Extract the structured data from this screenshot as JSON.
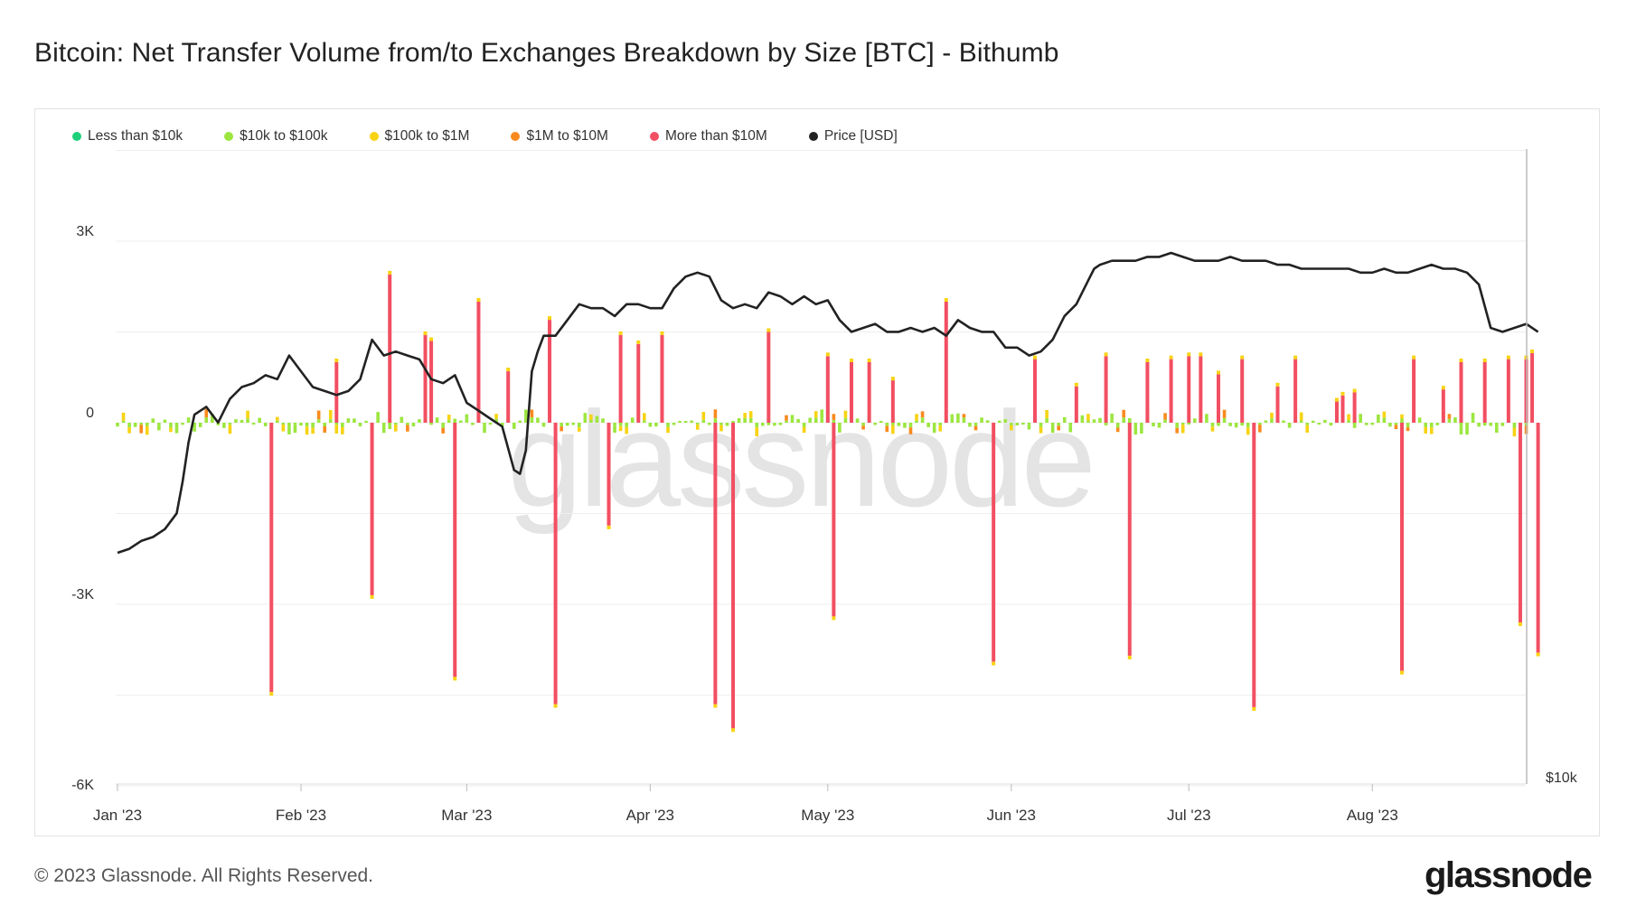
{
  "title": "Bitcoin: Net Transfer Volume from/to Exchanges Breakdown by Size [BTC] - Bithumb",
  "footer": {
    "copyright": "© 2023 Glassnode. All Rights Reserved.",
    "logo": "glassnode"
  },
  "watermark": "glassnode",
  "legend": [
    {
      "label": "Less than $10k",
      "color": "#1fd07a"
    },
    {
      "label": "$10k to $100k",
      "color": "#9ce63f"
    },
    {
      "label": "$100k to $1M",
      "color": "#f7d313"
    },
    {
      "label": "$1M to $10M",
      "color": "#fa8a1e"
    },
    {
      "label": "More than $10M",
      "color": "#f24f62"
    },
    {
      "label": "Price [USD]",
      "color": "#222222"
    }
  ],
  "chart_data": {
    "type": "bar",
    "title": "Bitcoin: Net Transfer Volume from/to Exchanges Breakdown by Size [BTC] - Bithumb",
    "stacked": true,
    "ylim": [
      -6000,
      4000
    ],
    "y_ticks": [
      3000,
      0,
      -3000,
      -6000
    ],
    "y_tick_labels": [
      "3K",
      "0",
      "-3K",
      "-6K"
    ],
    "secondary_y_tick_labels": [
      "$10k"
    ],
    "x_range": [
      "2023-01-01",
      "2023-08-28"
    ],
    "x_ticks": [
      "2023-01-01",
      "2023-02-01",
      "2023-03-01",
      "2023-04-01",
      "2023-05-01",
      "2023-06-01",
      "2023-07-01",
      "2023-08-01"
    ],
    "x_tick_labels": [
      "Jan '23",
      "Feb '23",
      "Mar '23",
      "Apr '23",
      "May '23",
      "Jun '23",
      "Jul '23",
      "Aug '23"
    ],
    "grid": true,
    "legend_position": "top-left",
    "big_series": "More than $10M",
    "big_moves": [
      {
        "date": "2023-01-27",
        "value": -4450
      },
      {
        "date": "2023-02-07",
        "value": 1000
      },
      {
        "date": "2023-02-13",
        "value": -2850
      },
      {
        "date": "2023-02-16",
        "value": 2450
      },
      {
        "date": "2023-02-22",
        "value": 1450
      },
      {
        "date": "2023-02-23",
        "value": 1350
      },
      {
        "date": "2023-02-27",
        "value": -4200
      },
      {
        "date": "2023-03-03",
        "value": 2000
      },
      {
        "date": "2023-03-08",
        "value": 850
      },
      {
        "date": "2023-03-15",
        "value": 1700
      },
      {
        "date": "2023-03-16",
        "value": -4650
      },
      {
        "date": "2023-03-25",
        "value": -1700
      },
      {
        "date": "2023-03-27",
        "value": 1450
      },
      {
        "date": "2023-03-30",
        "value": 1300
      },
      {
        "date": "2023-04-03",
        "value": 1450
      },
      {
        "date": "2023-04-12",
        "value": -4650
      },
      {
        "date": "2023-04-15",
        "value": -5050
      },
      {
        "date": "2023-04-21",
        "value": 1500
      },
      {
        "date": "2023-05-01",
        "value": 1100
      },
      {
        "date": "2023-05-02",
        "value": -3200
      },
      {
        "date": "2023-05-05",
        "value": 1000
      },
      {
        "date": "2023-05-08",
        "value": 1000
      },
      {
        "date": "2023-05-12",
        "value": 700
      },
      {
        "date": "2023-05-21",
        "value": 2000
      },
      {
        "date": "2023-05-29",
        "value": -3950
      },
      {
        "date": "2023-06-05",
        "value": 1050
      },
      {
        "date": "2023-06-12",
        "value": 600
      },
      {
        "date": "2023-06-17",
        "value": 1100
      },
      {
        "date": "2023-06-21",
        "value": -3850
      },
      {
        "date": "2023-06-24",
        "value": 1000
      },
      {
        "date": "2023-06-28",
        "value": 1050
      },
      {
        "date": "2023-07-01",
        "value": 1100
      },
      {
        "date": "2023-07-03",
        "value": 1100
      },
      {
        "date": "2023-07-06",
        "value": 800
      },
      {
        "date": "2023-07-10",
        "value": 1050
      },
      {
        "date": "2023-07-12",
        "value": -4700
      },
      {
        "date": "2023-07-16",
        "value": 600
      },
      {
        "date": "2023-07-19",
        "value": 1050
      },
      {
        "date": "2023-07-26",
        "value": 350
      },
      {
        "date": "2023-07-27",
        "value": 450
      },
      {
        "date": "2023-07-29",
        "value": 500
      },
      {
        "date": "2023-08-06",
        "value": -4100
      },
      {
        "date": "2023-08-08",
        "value": 1050
      },
      {
        "date": "2023-08-13",
        "value": 550
      },
      {
        "date": "2023-08-16",
        "value": 1000
      },
      {
        "date": "2023-08-20",
        "value": 1000
      },
      {
        "date": "2023-08-24",
        "value": 1050
      },
      {
        "date": "2023-08-26",
        "value": -3300
      },
      {
        "date": "2023-08-27",
        "value": 1050
      },
      {
        "date": "2023-08-28",
        "value": 1150
      },
      {
        "date": "2023-08-29",
        "value": -3800
      }
    ],
    "price_series": {
      "name": "Price [USD]",
      "dates": [
        "2023-01-01",
        "2023-01-03",
        "2023-01-05",
        "2023-01-07",
        "2023-01-09",
        "2023-01-11",
        "2023-01-12",
        "2023-01-13",
        "2023-01-14",
        "2023-01-16",
        "2023-01-18",
        "2023-01-20",
        "2023-01-22",
        "2023-01-24",
        "2023-01-26",
        "2023-01-28",
        "2023-01-30",
        "2023-02-01",
        "2023-02-03",
        "2023-02-05",
        "2023-02-07",
        "2023-02-09",
        "2023-02-11",
        "2023-02-13",
        "2023-02-15",
        "2023-02-17",
        "2023-02-19",
        "2023-02-21",
        "2023-02-23",
        "2023-02-25",
        "2023-02-27",
        "2023-03-01",
        "2023-03-03",
        "2023-03-05",
        "2023-03-07",
        "2023-03-09",
        "2023-03-10",
        "2023-03-11",
        "2023-03-12",
        "2023-03-13",
        "2023-03-14",
        "2023-03-16",
        "2023-03-18",
        "2023-03-20",
        "2023-03-22",
        "2023-03-24",
        "2023-03-26",
        "2023-03-28",
        "2023-03-30",
        "2023-04-01",
        "2023-04-03",
        "2023-04-05",
        "2023-04-07",
        "2023-04-09",
        "2023-04-11",
        "2023-04-13",
        "2023-04-15",
        "2023-04-17",
        "2023-04-19",
        "2023-04-21",
        "2023-04-23",
        "2023-04-25",
        "2023-04-27",
        "2023-04-29",
        "2023-05-01",
        "2023-05-03",
        "2023-05-05",
        "2023-05-07",
        "2023-05-09",
        "2023-05-11",
        "2023-05-13",
        "2023-05-15",
        "2023-05-17",
        "2023-05-19",
        "2023-05-21",
        "2023-05-23",
        "2023-05-25",
        "2023-05-27",
        "2023-05-29",
        "2023-05-31",
        "2023-06-02",
        "2023-06-04",
        "2023-06-06",
        "2023-06-08",
        "2023-06-10",
        "2023-06-12",
        "2023-06-14",
        "2023-06-15",
        "2023-06-16",
        "2023-06-18",
        "2023-06-20",
        "2023-06-22",
        "2023-06-24",
        "2023-06-26",
        "2023-06-28",
        "2023-06-30",
        "2023-07-02",
        "2023-07-04",
        "2023-07-06",
        "2023-07-08",
        "2023-07-10",
        "2023-07-12",
        "2023-07-14",
        "2023-07-16",
        "2023-07-18",
        "2023-07-20",
        "2023-07-22",
        "2023-07-24",
        "2023-07-26",
        "2023-07-28",
        "2023-07-30",
        "2023-08-01",
        "2023-08-03",
        "2023-08-05",
        "2023-08-07",
        "2023-08-09",
        "2023-08-11",
        "2023-08-13",
        "2023-08-15",
        "2023-08-17",
        "2023-08-19",
        "2023-08-21",
        "2023-08-23",
        "2023-08-25",
        "2023-08-27",
        "2023-08-29"
      ],
      "relative_level": [
        0.0,
        0.01,
        0.03,
        0.04,
        0.06,
        0.1,
        0.18,
        0.28,
        0.35,
        0.37,
        0.33,
        0.39,
        0.42,
        0.43,
        0.45,
        0.44,
        0.5,
        0.46,
        0.42,
        0.41,
        0.4,
        0.41,
        0.44,
        0.54,
        0.5,
        0.51,
        0.5,
        0.49,
        0.44,
        0.43,
        0.45,
        0.38,
        0.36,
        0.34,
        0.32,
        0.21,
        0.2,
        0.26,
        0.46,
        0.51,
        0.55,
        0.55,
        0.59,
        0.63,
        0.62,
        0.62,
        0.6,
        0.63,
        0.63,
        0.62,
        0.62,
        0.67,
        0.7,
        0.71,
        0.7,
        0.64,
        0.62,
        0.63,
        0.62,
        0.66,
        0.65,
        0.63,
        0.65,
        0.63,
        0.64,
        0.59,
        0.56,
        0.57,
        0.58,
        0.56,
        0.56,
        0.57,
        0.56,
        0.57,
        0.55,
        0.59,
        0.57,
        0.56,
        0.56,
        0.52,
        0.52,
        0.5,
        0.51,
        0.54,
        0.6,
        0.63,
        0.69,
        0.72,
        0.73,
        0.74,
        0.74,
        0.74,
        0.75,
        0.75,
        0.76,
        0.75,
        0.74,
        0.74,
        0.74,
        0.75,
        0.74,
        0.74,
        0.74,
        0.73,
        0.73,
        0.72,
        0.72,
        0.72,
        0.72,
        0.72,
        0.71,
        0.71,
        0.72,
        0.71,
        0.71,
        0.72,
        0.73,
        0.72,
        0.72,
        0.71,
        0.68,
        0.57,
        0.56,
        0.57,
        0.58,
        0.56
      ]
    }
  }
}
